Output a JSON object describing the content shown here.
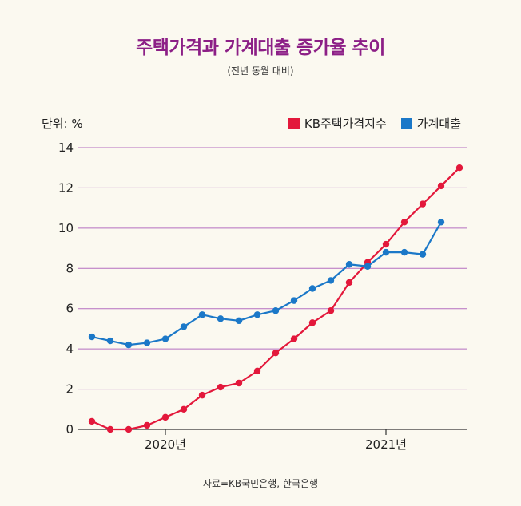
{
  "title": "주택가격과 가계대출 증가율 추이",
  "subtitle": "(전년 동월 대비)",
  "unit_label": "단위: %",
  "source": "자료=KB국민은행, 한국은행",
  "colors": {
    "title": "#8c1f86",
    "grid": "#b56fc0",
    "kb": "#e3183b",
    "loan": "#1b78c8"
  },
  "chart_data": {
    "type": "line",
    "title": "주택가격과 가계대출 증가율 추이",
    "subtitle": "(전년 동월 대비)",
    "ylabel": "단위: %",
    "ylim": [
      0,
      14
    ],
    "yticks": [
      0,
      2,
      4,
      6,
      8,
      10,
      12,
      14
    ],
    "xlabels": [
      {
        "label": "2020년",
        "index": 4
      },
      {
        "label": "2021년",
        "index": 16
      }
    ],
    "legend_position": "top-right",
    "grid": true,
    "series": [
      {
        "name": "KB주택가격지수",
        "color": "#e3183b",
        "values": [
          0.4,
          0.0,
          0.0,
          0.2,
          0.6,
          1.0,
          1.7,
          2.1,
          2.3,
          2.9,
          3.8,
          4.5,
          5.3,
          5.9,
          7.3,
          8.3,
          9.2,
          10.3,
          11.2,
          12.1,
          13.0
        ]
      },
      {
        "name": "가계대출",
        "color": "#1b78c8",
        "values": [
          4.6,
          4.4,
          4.2,
          4.3,
          4.5,
          5.1,
          5.7,
          5.5,
          5.4,
          5.7,
          5.9,
          6.4,
          7.0,
          7.4,
          8.2,
          8.1,
          8.8,
          8.8,
          8.7,
          10.3
        ]
      }
    ]
  }
}
